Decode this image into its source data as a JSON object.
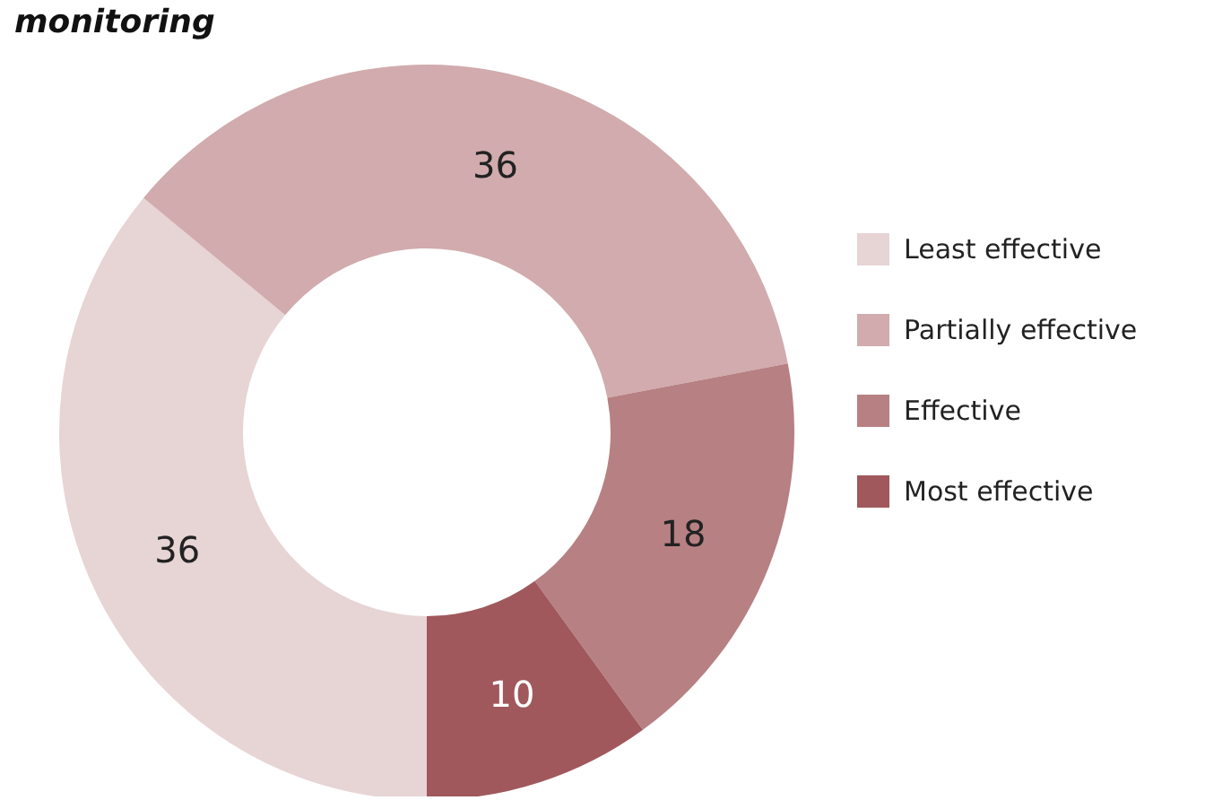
{
  "chart_data": {
    "type": "donut",
    "title": "monitoring",
    "categories": [
      "Least effective",
      "Partially effective",
      "Effective",
      "Most effective"
    ],
    "values": [
      36,
      36,
      18,
      10
    ],
    "colors": [
      "#e7d4d5",
      "#d1abad",
      "#b78082",
      "#a0585c"
    ],
    "data_labels": true,
    "legend": "right"
  }
}
